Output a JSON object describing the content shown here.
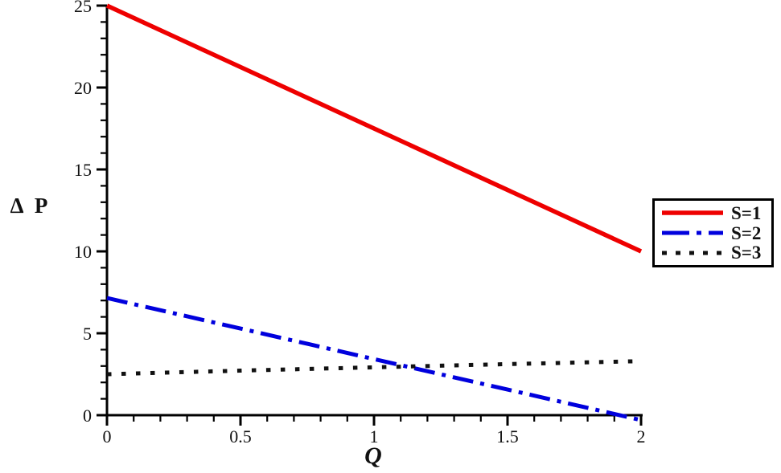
{
  "figure": {
    "background": "#ffffff",
    "axis_color": "#000000",
    "text_color": "#111111"
  },
  "chart_data": {
    "type": "line",
    "title": "",
    "xlabel": "Q",
    "ylabel": "Δ P",
    "xlim": [
      0,
      2
    ],
    "ylim": [
      0,
      25
    ],
    "grid": false,
    "legend_position": "right-middle",
    "x_major_ticks": [
      {
        "value": 0,
        "label": "0"
      },
      {
        "value": 0.5,
        "label": "0.5"
      },
      {
        "value": 1,
        "label": "1"
      },
      {
        "value": 1.5,
        "label": "1.5"
      },
      {
        "value": 2,
        "label": "2"
      }
    ],
    "x_minor_step": 0.1,
    "y_major_ticks": [
      {
        "value": 0,
        "label": "0"
      },
      {
        "value": 5,
        "label": "5"
      },
      {
        "value": 10,
        "label": "10"
      },
      {
        "value": 15,
        "label": "15"
      },
      {
        "value": 20,
        "label": "20"
      },
      {
        "value": 25,
        "label": "25"
      }
    ],
    "y_minor_step": 1,
    "series": [
      {
        "name": "S=1",
        "color": "#ee0000",
        "style": "solid",
        "stroke_width": 5.5,
        "points": [
          [
            0,
            25
          ],
          [
            2,
            10
          ]
        ]
      },
      {
        "name": "S=2",
        "color": "#0000dd",
        "style": "dashdot",
        "stroke_width": 5,
        "points": [
          [
            0,
            7.15
          ],
          [
            2,
            -0.3
          ]
        ]
      },
      {
        "name": "S=3",
        "color": "#111111",
        "style": "dotted",
        "stroke_width": 5,
        "points": [
          [
            0,
            2.5
          ],
          [
            0.5,
            2.72
          ],
          [
            1,
            2.92
          ],
          [
            1.5,
            3.12
          ],
          [
            2,
            3.3
          ]
        ]
      }
    ]
  }
}
